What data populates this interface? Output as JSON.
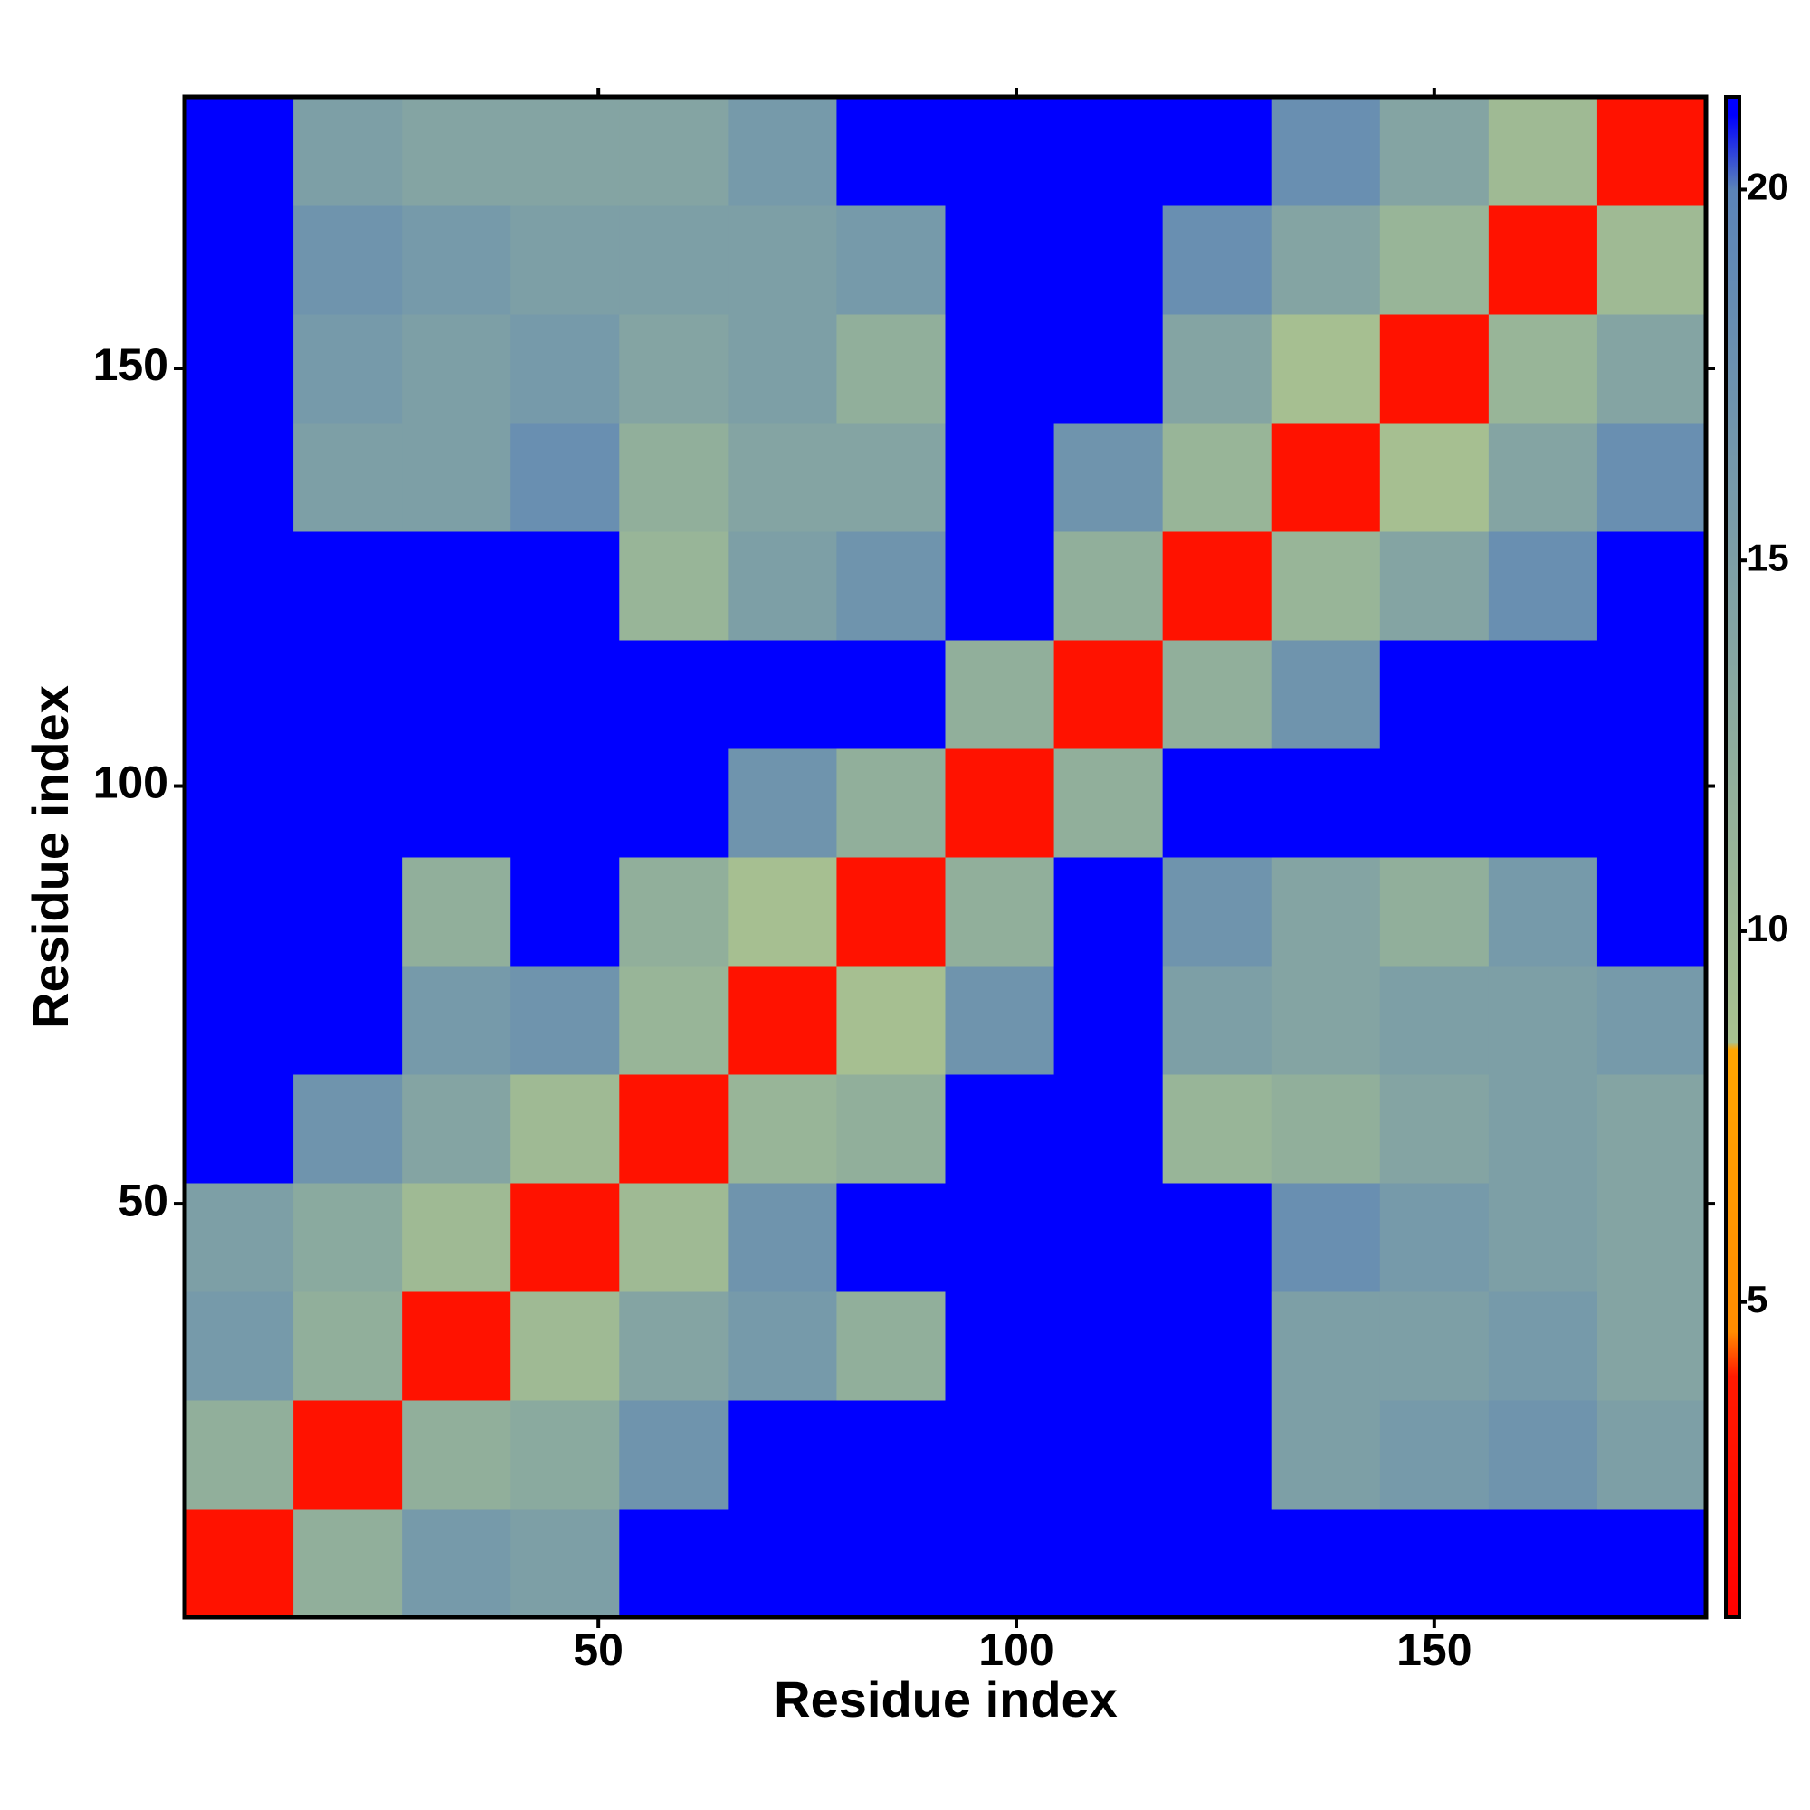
{
  "chart_data": {
    "type": "heatmap",
    "x_label": "Residue index",
    "y_label": "Residue index",
    "xlim": [
      0.5,
      182.5
    ],
    "ylim": [
      0.5,
      182.5
    ],
    "xticks": [
      50,
      100,
      150
    ],
    "yticks": [
      50,
      100,
      150
    ],
    "xbins": [
      0.5,
      13.5,
      26.5,
      39.5,
      52.5,
      65.5,
      78.5,
      91.5,
      104.5,
      117.5,
      130.5,
      143.5,
      156.5,
      169.5,
      182.5
    ],
    "ybins": [
      0.5,
      13.5,
      26.5,
      39.5,
      52.5,
      65.5,
      78.5,
      91.5,
      104.5,
      117.5,
      130.5,
      143.5,
      156.5,
      169.5,
      182.5
    ],
    "z": [
      [
        3,
        12,
        16,
        15,
        21,
        21,
        21,
        21,
        21,
        21,
        21,
        21,
        21,
        21
      ],
      [
        12,
        3,
        12,
        13,
        17,
        21,
        21,
        21,
        21,
        21,
        15,
        16,
        17,
        15
      ],
      [
        16,
        12,
        3,
        10,
        14,
        16,
        12,
        21,
        21,
        21,
        15,
        15,
        16,
        14
      ],
      [
        15,
        13,
        10,
        3,
        10,
        17,
        21,
        21,
        21,
        21,
        18,
        16,
        15,
        14
      ],
      [
        21,
        17,
        14,
        10,
        3,
        11,
        12,
        21,
        21,
        11,
        12,
        14,
        15,
        14
      ],
      [
        21,
        21,
        16,
        17,
        11,
        3,
        9,
        17,
        21,
        15,
        14,
        15,
        15,
        16
      ],
      [
        21,
        21,
        12,
        21,
        12,
        9,
        3,
        12,
        21,
        17,
        14,
        12,
        16,
        21
      ],
      [
        21,
        21,
        21,
        21,
        21,
        17,
        12,
        3,
        12,
        21,
        21,
        21,
        21,
        21
      ],
      [
        21,
        21,
        21,
        21,
        21,
        21,
        21,
        12,
        3,
        12,
        17,
        21,
        21,
        21
      ],
      [
        21,
        21,
        21,
        21,
        11,
        15,
        17,
        21,
        12,
        3,
        11,
        14,
        18,
        21
      ],
      [
        21,
        15,
        15,
        18,
        12,
        14,
        14,
        21,
        17,
        11,
        3,
        9,
        14,
        18
      ],
      [
        21,
        16,
        15,
        16,
        14,
        15,
        12,
        21,
        21,
        14,
        9,
        3,
        11,
        14
      ],
      [
        21,
        17,
        16,
        15,
        15,
        15,
        16,
        21,
        21,
        18,
        14,
        11,
        3,
        10
      ],
      [
        21,
        15,
        14,
        14,
        14,
        16,
        21,
        21,
        21,
        21,
        18,
        14,
        10,
        3
      ]
    ],
    "colorbar": {
      "lim": [
        0.75,
        21.25
      ],
      "ticks": [
        5,
        10,
        15,
        20
      ],
      "colorscale": [
        [
          0.75,
          "#ff0000"
        ],
        [
          4,
          "#ff1a00"
        ],
        [
          4.6,
          "#ff8c00"
        ],
        [
          8.4,
          "#ffa500"
        ],
        [
          8.5,
          "#a9c28f"
        ],
        [
          20,
          "#5b84b8"
        ],
        [
          21,
          "#0000ff"
        ],
        [
          21.25,
          "#0000ff"
        ]
      ]
    }
  }
}
